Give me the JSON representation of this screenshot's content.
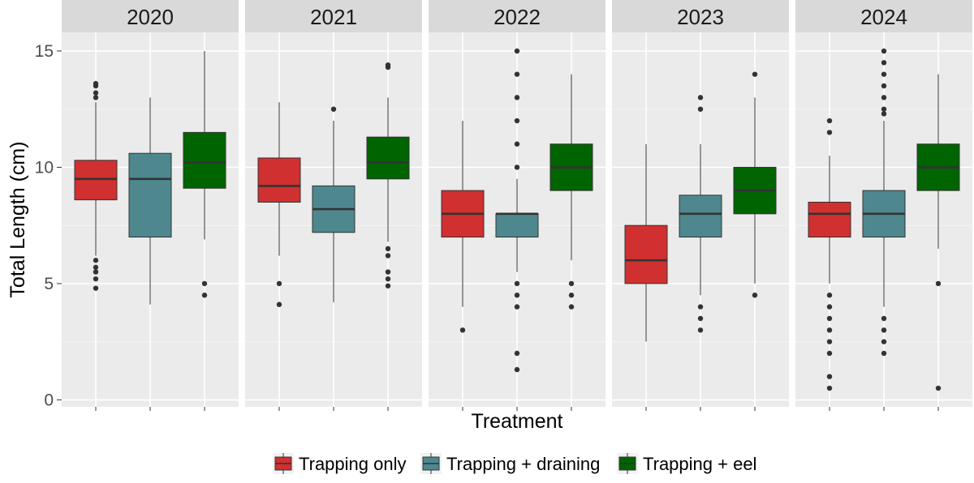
{
  "chart_data": {
    "type": "boxplot",
    "facet_by": "Year",
    "facets": [
      "2020",
      "2021",
      "2022",
      "2023",
      "2024"
    ],
    "xlabel": "Treatment",
    "ylabel": "Total Length (cm)",
    "ylim": [
      -0.3,
      15.8
    ],
    "yticks": [
      0,
      5,
      10,
      15
    ],
    "x_tick_labels_visible": false,
    "legend_position": "bottom",
    "series": [
      {
        "name": "Trapping only",
        "color": "#D03030"
      },
      {
        "name": "Trapping + draining",
        "color": "#4E888E"
      },
      {
        "name": "Trapping + eel",
        "color": "#006400"
      }
    ],
    "panels": [
      {
        "facet": "2020",
        "boxes": [
          {
            "series": "Trapping only",
            "q1": 8.6,
            "median": 9.5,
            "q3": 10.3,
            "whisker_low": 6.2,
            "whisker_high": 12.8,
            "outliers": [
              4.8,
              5.2,
              5.5,
              5.7,
              6.0,
              13.0,
              13.2,
              13.5,
              13.6
            ]
          },
          {
            "series": "Trapping + draining",
            "q1": 7.0,
            "median": 9.5,
            "q3": 10.6,
            "whisker_low": 4.1,
            "whisker_high": 13.0,
            "outliers": []
          },
          {
            "series": "Trapping + eel",
            "q1": 9.1,
            "median": 10.2,
            "q3": 11.5,
            "whisker_low": 6.9,
            "whisker_high": 15.0,
            "outliers": [
              4.5,
              5.0
            ]
          }
        ]
      },
      {
        "facet": "2021",
        "boxes": [
          {
            "series": "Trapping only",
            "q1": 8.5,
            "median": 9.2,
            "q3": 10.4,
            "whisker_low": 6.2,
            "whisker_high": 12.8,
            "outliers": [
              4.1,
              5.0
            ]
          },
          {
            "series": "Trapping + draining",
            "q1": 7.2,
            "median": 8.2,
            "q3": 9.2,
            "whisker_low": 4.2,
            "whisker_high": 12.0,
            "outliers": [
              12.5
            ]
          },
          {
            "series": "Trapping + eel",
            "q1": 9.5,
            "median": 10.2,
            "q3": 11.3,
            "whisker_low": 6.8,
            "whisker_high": 13.0,
            "outliers": [
              4.9,
              5.2,
              5.5,
              6.2,
              6.5,
              14.3,
              14.4
            ]
          }
        ]
      },
      {
        "facet": "2022",
        "boxes": [
          {
            "series": "Trapping only",
            "q1": 7.0,
            "median": 8.0,
            "q3": 9.0,
            "whisker_low": 4.0,
            "whisker_high": 12.0,
            "outliers": [
              3.0
            ]
          },
          {
            "series": "Trapping + draining",
            "q1": 7.0,
            "median": 8.0,
            "q3": 8.0,
            "whisker_low": 5.5,
            "whisker_high": 9.5,
            "outliers": [
              1.3,
              2.0,
              4.0,
              4.5,
              5.0,
              10.0,
              11.0,
              12.0,
              13.0,
              14.0,
              15.0
            ]
          },
          {
            "series": "Trapping + eel",
            "q1": 9.0,
            "median": 10.0,
            "q3": 11.0,
            "whisker_low": 6.0,
            "whisker_high": 14.0,
            "outliers": [
              4.0,
              4.5,
              5.0
            ]
          }
        ]
      },
      {
        "facet": "2023",
        "boxes": [
          {
            "series": "Trapping only",
            "q1": 5.0,
            "median": 6.0,
            "q3": 7.5,
            "whisker_low": 2.5,
            "whisker_high": 11.0,
            "outliers": []
          },
          {
            "series": "Trapping + draining",
            "q1": 7.0,
            "median": 8.0,
            "q3": 8.8,
            "whisker_low": 4.5,
            "whisker_high": 11.0,
            "outliers": [
              3.0,
              3.5,
              4.0,
              12.5,
              13.0
            ]
          },
          {
            "series": "Trapping + eel",
            "q1": 8.0,
            "median": 9.0,
            "q3": 10.0,
            "whisker_low": 5.0,
            "whisker_high": 13.0,
            "outliers": [
              4.5,
              14.0
            ]
          }
        ]
      },
      {
        "facet": "2024",
        "boxes": [
          {
            "series": "Trapping only",
            "q1": 7.0,
            "median": 8.0,
            "q3": 8.5,
            "whisker_low": 5.0,
            "whisker_high": 10.5,
            "outliers": [
              0.5,
              1.0,
              2.0,
              2.5,
              3.0,
              3.5,
              4.0,
              4.5,
              11.5,
              12.0
            ]
          },
          {
            "series": "Trapping + draining",
            "q1": 7.0,
            "median": 8.0,
            "q3": 9.0,
            "whisker_low": 4.0,
            "whisker_high": 12.0,
            "outliers": [
              2.0,
              2.5,
              3.0,
              3.5,
              12.3,
              12.5,
              13.0,
              13.5,
              14.0,
              14.5,
              15.0
            ]
          },
          {
            "series": "Trapping + eel",
            "q1": 9.0,
            "median": 10.0,
            "q3": 11.0,
            "whisker_low": 6.5,
            "whisker_high": 14.0,
            "outliers": [
              0.5,
              5.0
            ]
          }
        ]
      }
    ]
  }
}
